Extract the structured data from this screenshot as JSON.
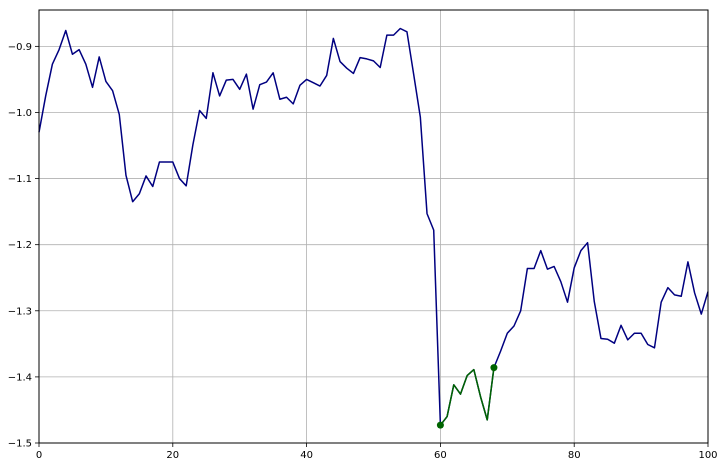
{
  "chart_data": {
    "type": "line",
    "title": "",
    "xlabel": "",
    "ylabel": "",
    "xlim": [
      0,
      100
    ],
    "ylim": [
      -1.5,
      -0.845
    ],
    "grid": true,
    "x_ticks": [
      0,
      20,
      40,
      60,
      80,
      100
    ],
    "x_tick_labels": [
      "0",
      "20",
      "40",
      "60",
      "80",
      "100"
    ],
    "y_ticks": [
      -1.5,
      -1.4,
      -1.3,
      -1.2,
      -1.1,
      -1.0,
      -0.9
    ],
    "y_tick_labels": [
      "−1.5",
      "−1.4",
      "−1.3",
      "−1.2",
      "−1.1",
      "−1.0",
      "−0.9"
    ],
    "series": [
      {
        "color": "#000080",
        "x": [
          0,
          1,
          2,
          3,
          4,
          5,
          6,
          7,
          8,
          9,
          10,
          11,
          12,
          13,
          14,
          15,
          16,
          17,
          18,
          19,
          20,
          21,
          22,
          23,
          24,
          25,
          26,
          27,
          28,
          29,
          30,
          31,
          32,
          33,
          34,
          35,
          36,
          37,
          38,
          39,
          40,
          41,
          42,
          43,
          44,
          45,
          46,
          47,
          48,
          49,
          50,
          51,
          52,
          53,
          54,
          55,
          56,
          57,
          58,
          59,
          60,
          61,
          62,
          63,
          64,
          65,
          66,
          67,
          68,
          69,
          70,
          71,
          72,
          73,
          74,
          75,
          76,
          77,
          78,
          79,
          80,
          81,
          82,
          83,
          84,
          85,
          86,
          87,
          88,
          89,
          90,
          91,
          92,
          93,
          94,
          95,
          96,
          97,
          98,
          99,
          100
        ],
        "y": [
          -1.03,
          -0.975,
          -0.927,
          -0.905,
          -0.876,
          -0.912,
          -0.905,
          -0.927,
          -0.962,
          -0.916,
          -0.953,
          -0.967,
          -1.003,
          -1.095,
          -1.135,
          -1.123,
          -1.096,
          -1.112,
          -1.075,
          -1.075,
          -1.075,
          -1.1,
          -1.111,
          -1.049,
          -0.997,
          -1.009,
          -0.94,
          -0.975,
          -0.951,
          -0.95,
          -0.965,
          -0.942,
          -0.995,
          -0.958,
          -0.954,
          -0.94,
          -0.98,
          -0.977,
          -0.987,
          -0.959,
          -0.95,
          -0.955,
          -0.96,
          -0.944,
          -0.888,
          -0.923,
          -0.933,
          -0.941,
          -0.917,
          -0.919,
          -0.922,
          -0.932,
          -0.883,
          -0.883,
          -0.873,
          -0.878,
          -0.942,
          -1.007,
          -1.153,
          -1.178,
          -1.473,
          -1.46,
          -1.412,
          -1.426,
          -1.398,
          -1.389,
          -1.43,
          -1.465,
          -1.386,
          -1.361,
          -1.334,
          -1.323,
          -1.3,
          -1.236,
          -1.236,
          -1.209,
          -1.237,
          -1.233,
          -1.256,
          -1.287,
          -1.235,
          -1.209,
          -1.197,
          -1.286,
          -1.342,
          -1.343,
          -1.349,
          -1.322,
          -1.344,
          -1.334,
          -1.334,
          -1.351,
          -1.356,
          -1.287,
          -1.265,
          -1.276,
          -1.278,
          -1.226,
          -1.273,
          -1.305,
          -1.271
        ]
      },
      {
        "color": "#006400",
        "x": [
          60,
          61,
          62,
          63,
          64,
          65,
          66,
          67,
          68
        ],
        "y": [
          -1.473,
          -1.46,
          -1.412,
          -1.426,
          -1.398,
          -1.389,
          -1.43,
          -1.465,
          -1.386
        ],
        "markers": [
          {
            "x": 60,
            "y": -1.473
          },
          {
            "x": 68,
            "y": -1.386
          }
        ]
      }
    ]
  }
}
